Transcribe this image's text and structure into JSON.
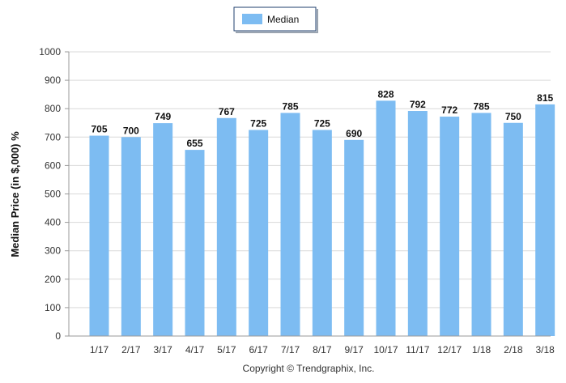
{
  "chart_data": {
    "type": "bar",
    "categories": [
      "1/17",
      "2/17",
      "3/17",
      "4/17",
      "5/17",
      "6/17",
      "7/17",
      "8/17",
      "9/17",
      "10/17",
      "11/17",
      "12/17",
      "1/18",
      "2/18",
      "3/18"
    ],
    "series": [
      {
        "name": "Median",
        "values": [
          705,
          700,
          749,
          655,
          767,
          725,
          785,
          725,
          690,
          828,
          792,
          772,
          785,
          750,
          815
        ]
      }
    ],
    "ylabel": "Median Price (in $,000) %",
    "xlabel": "",
    "ylim": [
      0,
      1000
    ],
    "yticks": [
      0,
      100,
      200,
      300,
      400,
      500,
      600,
      700,
      800,
      900,
      1000
    ],
    "grid": true,
    "legend_position": "top-center",
    "bar_color": "#7dbcf2"
  },
  "footer": {
    "copyright": "Copyright © Trendgraphix, Inc."
  }
}
